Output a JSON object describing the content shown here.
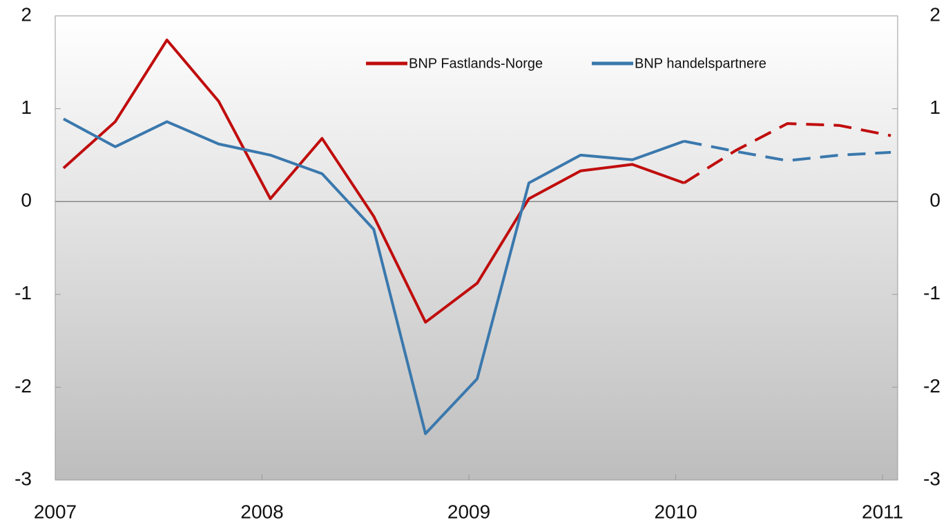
{
  "chart_data": {
    "type": "line",
    "x": [
      2007.04,
      2007.29,
      2007.54,
      2007.79,
      2008.04,
      2008.29,
      2008.54,
      2008.79,
      2009.04,
      2009.29,
      2009.54,
      2009.79,
      2010.04,
      2010.29,
      2010.54,
      2010.79,
      2011.04
    ],
    "xlim": [
      2007,
      2011.073
    ],
    "xticks": [
      2007,
      2008,
      2009,
      2010,
      2011
    ],
    "ylim": [
      -3,
      2
    ],
    "yticks": [
      -3,
      -2,
      -1,
      0,
      1,
      2
    ],
    "y2lim": [
      -3,
      2
    ],
    "y2ticks": [
      -3,
      -2,
      -1,
      0,
      1,
      2
    ],
    "dashed_from": 12,
    "series": [
      {
        "name": "BNP Fastlands-Norge",
        "color": "#c00d0d",
        "values": [
          0.36,
          0.86,
          1.74,
          1.08,
          0.03,
          0.68,
          -0.16,
          -1.3,
          -0.88,
          0.03,
          0.33,
          0.4,
          0.2,
          0.55,
          0.84,
          0.82,
          0.71
        ]
      },
      {
        "name": "BNP handelspartnere",
        "color": "#3a78ad",
        "values": [
          0.89,
          0.59,
          0.86,
          0.62,
          0.5,
          0.3,
          -0.3,
          -2.5,
          -1.91,
          0.2,
          0.5,
          0.45,
          0.65,
          0.54,
          0.44,
          0.5,
          0.53
        ]
      }
    ]
  }
}
